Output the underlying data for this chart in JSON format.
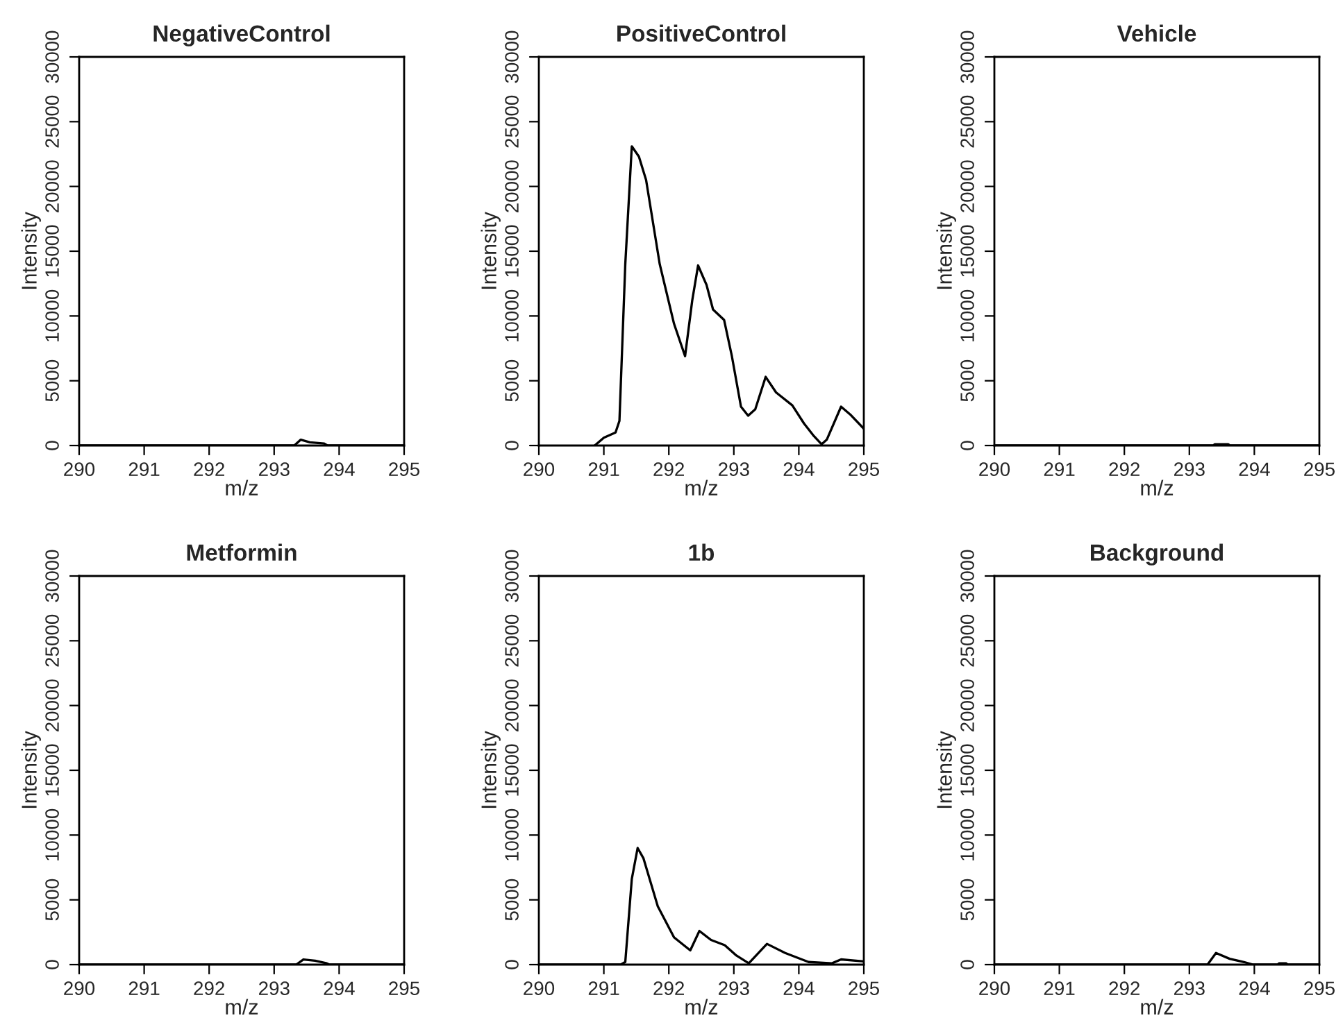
{
  "chart_data": [
    {
      "type": "line",
      "title": "NegativeControl",
      "xlabel": "m/z",
      "ylabel": "Intensity",
      "color": "#000000",
      "xlim": [
        290,
        295
      ],
      "ylim": [
        0,
        30000
      ],
      "xticks": [
        290,
        291,
        292,
        293,
        294,
        295
      ],
      "yticks": [
        0,
        5000,
        10000,
        15000,
        20000,
        25000,
        30000
      ],
      "x": [
        290,
        293.31,
        293.41,
        293.55,
        293.77,
        293.82,
        295
      ],
      "values": [
        0,
        0,
        450,
        250,
        150,
        0,
        0
      ]
    },
    {
      "type": "line",
      "title": "PositiveControl",
      "xlabel": "m/z",
      "ylabel": "Intensity",
      "color": "#000000",
      "xlim": [
        290,
        295
      ],
      "ylim": [
        0,
        30000
      ],
      "xticks": [
        290,
        291,
        292,
        293,
        294,
        295
      ],
      "yticks": [
        0,
        5000,
        10000,
        15000,
        20000,
        25000,
        30000
      ],
      "x": [
        290.86,
        291.0,
        291.18,
        291.24,
        291.33,
        291.43,
        291.54,
        291.65,
        291.86,
        292.08,
        292.25,
        292.36,
        292.45,
        292.58,
        292.68,
        292.85,
        292.97,
        293.11,
        293.22,
        293.33,
        293.49,
        293.65,
        293.9,
        294.08,
        294.22,
        294.35,
        294.43,
        294.65,
        294.79,
        295.0
      ],
      "values": [
        0,
        600,
        1000,
        1900,
        14000,
        23100,
        22300,
        20500,
        14000,
        9400,
        6900,
        11200,
        13900,
        12400,
        10500,
        9700,
        6900,
        3000,
        2300,
        2800,
        5300,
        4100,
        3100,
        1700,
        800,
        100,
        450,
        3000,
        2400,
        1300
      ]
    },
    {
      "type": "line",
      "title": "Vehicle",
      "xlabel": "m/z",
      "ylabel": "Intensity",
      "color": "#000000",
      "xlim": [
        290,
        295
      ],
      "ylim": [
        0,
        30000
      ],
      "xticks": [
        290,
        291,
        292,
        293,
        294,
        295
      ],
      "yticks": [
        0,
        5000,
        10000,
        15000,
        20000,
        25000,
        30000
      ],
      "x": [
        290,
        293.37,
        293.39,
        293.6,
        293.62,
        295
      ],
      "values": [
        0,
        0,
        100,
        100,
        0,
        0
      ]
    },
    {
      "type": "line",
      "title": "Metformin",
      "xlabel": "m/z",
      "ylabel": "Intensity",
      "color": "#000000",
      "xlim": [
        290,
        295
      ],
      "ylim": [
        0,
        30000
      ],
      "xticks": [
        290,
        291,
        292,
        293,
        294,
        295
      ],
      "yticks": [
        0,
        5000,
        10000,
        15000,
        20000,
        25000,
        30000
      ],
      "x": [
        290,
        293.34,
        293.45,
        293.63,
        293.81,
        293.85,
        295
      ],
      "values": [
        0,
        0,
        400,
        300,
        100,
        0,
        0
      ]
    },
    {
      "type": "line",
      "title": "1b",
      "xlabel": "m/z",
      "ylabel": "Intensity",
      "color": "#000000",
      "xlim": [
        290,
        295
      ],
      "ylim": [
        0,
        30000
      ],
      "xticks": [
        290,
        291,
        292,
        293,
        294,
        295
      ],
      "yticks": [
        0,
        5000,
        10000,
        15000,
        20000,
        25000,
        30000
      ],
      "x": [
        290,
        291.26,
        291.33,
        291.43,
        291.52,
        291.61,
        291.83,
        292.08,
        292.33,
        292.47,
        292.65,
        292.86,
        293.04,
        293.23,
        293.51,
        293.79,
        294.15,
        294.51,
        294.65,
        295.0
      ],
      "values": [
        0,
        0,
        200,
        6600,
        9000,
        8200,
        4500,
        2100,
        1100,
        2600,
        1900,
        1500,
        700,
        100,
        1600,
        900,
        200,
        100,
        400,
        250
      ]
    },
    {
      "type": "line",
      "title": "Background",
      "xlabel": "m/z",
      "ylabel": "Intensity",
      "color": "#000000",
      "xlim": [
        290,
        295
      ],
      "ylim": [
        0,
        30000
      ],
      "xticks": [
        290,
        291,
        292,
        293,
        294,
        295
      ],
      "yticks": [
        0,
        5000,
        10000,
        15000,
        20000,
        25000,
        30000
      ],
      "x": [
        290,
        293.28,
        293.41,
        293.62,
        293.84,
        293.98,
        294.36,
        294.38,
        294.49,
        294.51,
        295
      ],
      "values": [
        0,
        0,
        900,
        450,
        200,
        0,
        0,
        100,
        100,
        0,
        0
      ]
    }
  ]
}
